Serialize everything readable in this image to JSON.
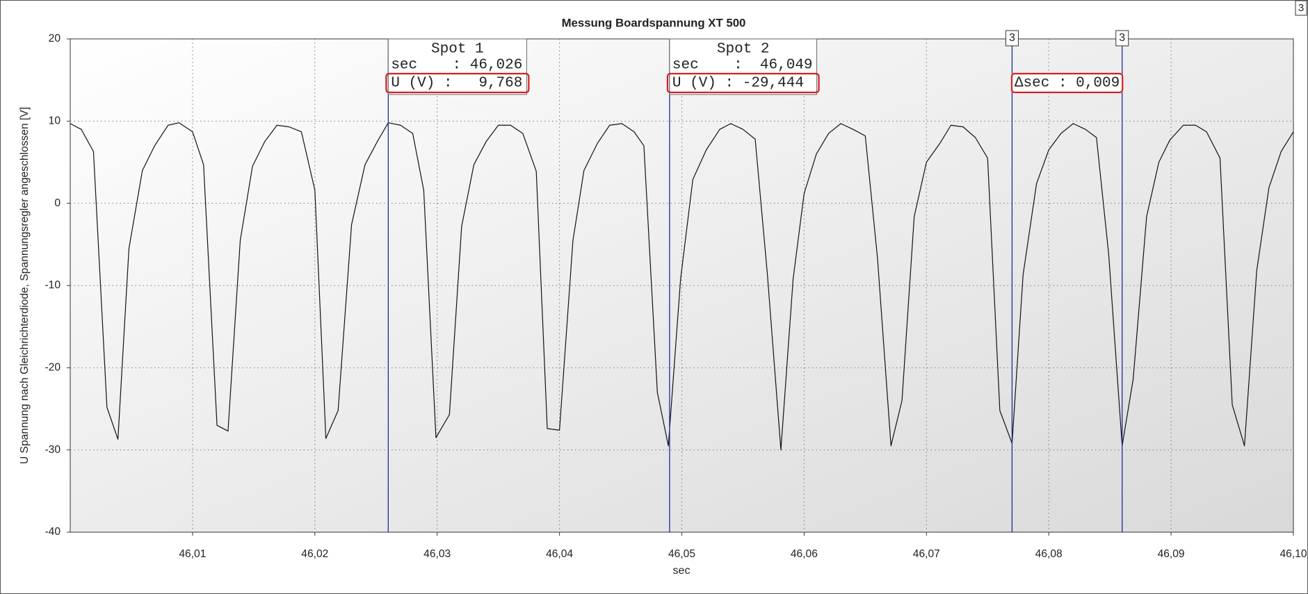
{
  "chart_data": {
    "type": "line",
    "title": "Messung Boardspannung XT 500",
    "x_label": "sec",
    "y_label": "U Spannung nach Gleichrichterdiode, Spannungsregler angeschlossen [V]",
    "corner_label": "3",
    "color": "#111111",
    "cursor_color": "#1f2a9e",
    "grid": true,
    "xlim": [
      46.0,
      46.1
    ],
    "ylim": [
      -40,
      20
    ],
    "xticks": [
      {
        "value": 46.01,
        "label": "46,01"
      },
      {
        "value": 46.02,
        "label": "46,02"
      },
      {
        "value": 46.03,
        "label": "46,03"
      },
      {
        "value": 46.04,
        "label": "46,04"
      },
      {
        "value": 46.05,
        "label": "46,05"
      },
      {
        "value": 46.06,
        "label": "46,06"
      },
      {
        "value": 46.07,
        "label": "46,07"
      },
      {
        "value": 46.08,
        "label": "46,08"
      },
      {
        "value": 46.09,
        "label": "46,09"
      },
      {
        "value": 46.1,
        "label": "46,10"
      }
    ],
    "yticks": [
      20,
      10,
      0,
      -10,
      -20,
      -30,
      -40
    ],
    "x": [
      46.0,
      46.0009,
      46.0019,
      46.003,
      46.0039,
      46.0048,
      46.0059,
      46.0069,
      46.008,
      46.0089,
      46.01,
      46.0109,
      46.012,
      46.0129,
      46.0139,
      46.0149,
      46.0159,
      46.0169,
      46.0179,
      46.0189,
      46.02,
      46.0209,
      46.0219,
      46.023,
      46.0241,
      46.0251,
      46.026,
      46.027,
      46.028,
      46.0289,
      46.0299,
      46.031,
      46.032,
      46.033,
      46.034,
      46.035,
      46.036,
      46.037,
      46.0381,
      46.039,
      46.04,
      46.0411,
      46.042,
      46.0431,
      46.0441,
      46.0451,
      46.0461,
      46.0469,
      46.048,
      46.0489,
      46.0499,
      46.0509,
      46.052,
      46.0531,
      46.054,
      46.055,
      46.056,
      46.057,
      46.0581,
      46.0591,
      46.06,
      46.061,
      46.062,
      46.063,
      46.064,
      46.065,
      46.066,
      46.0671,
      46.068,
      46.069,
      46.07,
      46.0711,
      46.072,
      46.073,
      46.074,
      46.075,
      46.076,
      46.077,
      46.0779,
      46.079,
      46.08,
      46.081,
      46.082,
      46.083,
      46.0839,
      46.0849,
      46.086,
      46.0869,
      46.088,
      46.089,
      46.0899,
      46.091,
      46.092,
      46.0929,
      46.094,
      46.095,
      46.096,
      46.097,
      46.098,
      46.099,
      46.1
    ],
    "values": [
      9.7,
      9.0,
      6.3,
      -24.8,
      -28.7,
      -5.5,
      4.0,
      7.0,
      9.5,
      9.8,
      8.7,
      4.7,
      -27.0,
      -27.7,
      -4.5,
      4.5,
      7.5,
      9.5,
      9.3,
      8.7,
      1.6,
      -28.6,
      -25.2,
      -2.6,
      4.7,
      7.5,
      9.8,
      9.5,
      8.5,
      1.6,
      -28.5,
      -25.7,
      -2.8,
      4.7,
      7.5,
      9.5,
      9.5,
      8.5,
      3.9,
      -27.4,
      -27.6,
      -4.5,
      4.0,
      7.3,
      9.5,
      9.7,
      8.7,
      7.0,
      -23.0,
      -29.5,
      -9.2,
      2.9,
      6.5,
      9.0,
      9.7,
      9.0,
      7.8,
      -8.7,
      -30.0,
      -9.2,
      1.2,
      6.0,
      8.5,
      9.7,
      9.0,
      8.2,
      -6.7,
      -29.5,
      -24.0,
      -1.6,
      5.0,
      7.3,
      9.5,
      9.3,
      8.0,
      5.5,
      -25.2,
      -29.2,
      -8.7,
      2.4,
      6.5,
      8.5,
      9.7,
      9.0,
      8.0,
      -6.2,
      -29.5,
      -21.4,
      -1.6,
      5.0,
      7.7,
      9.5,
      9.5,
      8.7,
      5.5,
      -24.5,
      -29.5,
      -8.2,
      1.9,
      6.3,
      8.7
    ],
    "cursors": [
      {
        "x": 46.026,
        "title": "Spot 1",
        "x_text": "sec    : 46,026",
        "y_text": "U (V) :   9,768"
      },
      {
        "x": 46.049,
        "title": "Spot 2",
        "x_text": "sec    :  46,049",
        "y_text": "U (V) : -29,444"
      }
    ],
    "markers": [
      {
        "x": 46.077,
        "label": "3"
      },
      {
        "x": 46.086,
        "label": "3"
      }
    ],
    "delta_text": "Δsec : 0,009"
  }
}
